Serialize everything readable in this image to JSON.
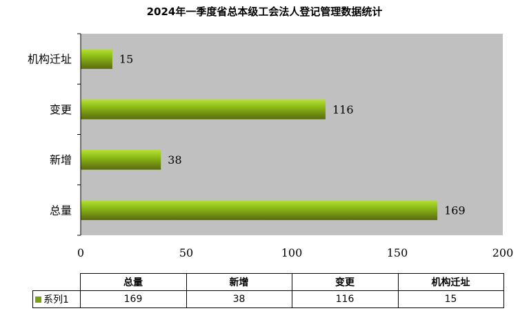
{
  "chart_data": {
    "type": "bar",
    "orientation": "horizontal",
    "title": "2024年一季度省总本级工会法人登记管理数据统计",
    "categories": [
      "总量",
      "新增",
      "变更",
      "机构迁址"
    ],
    "series": [
      {
        "name": "系列1",
        "values": [
          169,
          38,
          116,
          15
        ]
      }
    ],
    "xlim": [
      0,
      200
    ],
    "xticks": [
      0,
      50,
      100,
      150,
      200
    ],
    "grid": false,
    "plot_background": "#c0c0c0",
    "bar_color": "#7ba012",
    "data_table": true
  }
}
